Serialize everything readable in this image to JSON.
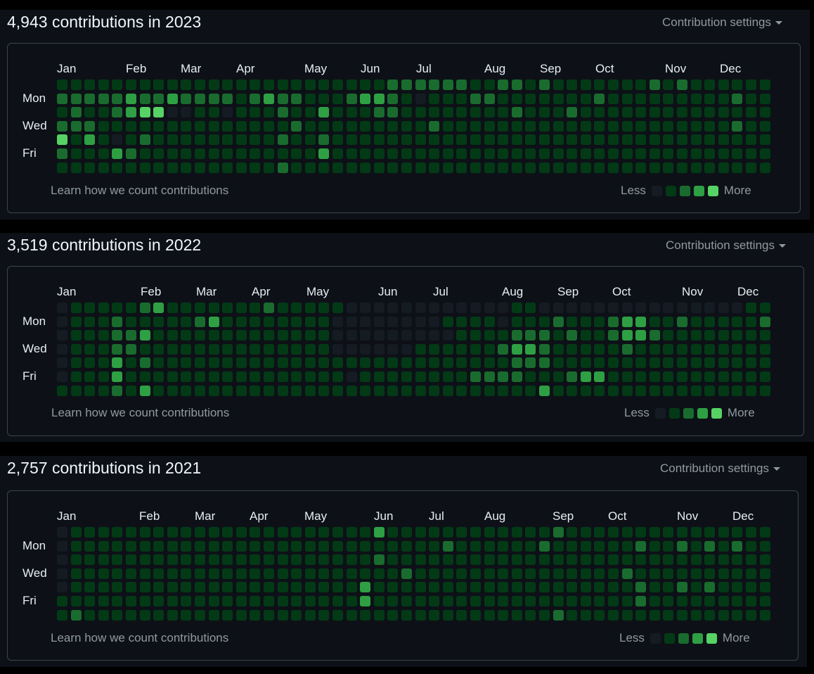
{
  "colors": {
    "levels": [
      "#151b23",
      "#033a16",
      "#196c2e",
      "#2ea043",
      "#56d364"
    ],
    "page_bg": "#000000",
    "panel_bg": "#0d1117"
  },
  "common": {
    "settings_label": "Contribution settings",
    "learn_link": "Learn how we count contributions",
    "legend_less": "Less",
    "legend_more": "More",
    "days": [
      "Mon",
      "Wed",
      "Fri"
    ]
  },
  "years": [
    {
      "title": "4,943 contributions in 2023",
      "months": [
        "Jan",
        "Feb",
        "Mar",
        "Apr",
        "May",
        "Jun",
        "Jul",
        "Aug",
        "Sep",
        "Oct",
        "Nov",
        "Dec"
      ],
      "grid": [
        "1111111111111111111111112222221122121111111212111111",
        "2222232232222123221112332101112211111112111111111211",
        "1211234400110111211311122111111112111211111111111111",
        "2221111111111111121111111112111111111111111111111211",
        "4131012111111111211211111111111111111111111111111111",
        "2111321111111111111311111111111111111111111111111111",
        "1111111111111111211111111111111111111111111111111111"
      ],
      "startCol": 0,
      "endCol": 51
    },
    {
      "title": "3,519 contributions in 2022",
      "months": [
        "Jan",
        "Feb",
        "Mar",
        "Apr",
        "May",
        "Jun",
        "Jul",
        "Aug",
        "Sep",
        "Oct",
        "Nov",
        "Dec"
      ],
      "grid": [
        "0111112311111112111110000000000001100000000000000011",
        "0111211111231111111100000000111101112111233112111112",
        "0111223111111111111100000000011112221211233211111111",
        "0111221111111111111100000011111123321111121111111111",
        "0111312111111111111111111111111112221111111111111111",
        "0111311111111111111110111111112222111233111111111111",
        "1111213111111111111111111111111111131111111111111111"
      ],
      "startCol": 0,
      "endCol": 52
    },
    {
      "title": "2,757 contributions in 2021",
      "months": [
        "Jan",
        "Feb",
        "Mar",
        "Apr",
        "May",
        "Jun",
        "Jul",
        "Aug",
        "Sep",
        "Oct",
        "Nov",
        "Dec"
      ],
      "grid": [
        "0111111111111111111111131111111111112111111111111111",
        "0111111111111111111111111111211111121111112112121211",
        "0111111111111111111111121111111111111111111111111111",
        "0111111111111111111111111211111111111111121111111111",
        "0111111111111111111111311111111111111111112112121111",
        "1111111111111111111111311111111111111111112111111111",
        "1211111111111111111111111111111111112111111111111111"
      ],
      "startCol": 0,
      "endCol": 52
    }
  ]
}
